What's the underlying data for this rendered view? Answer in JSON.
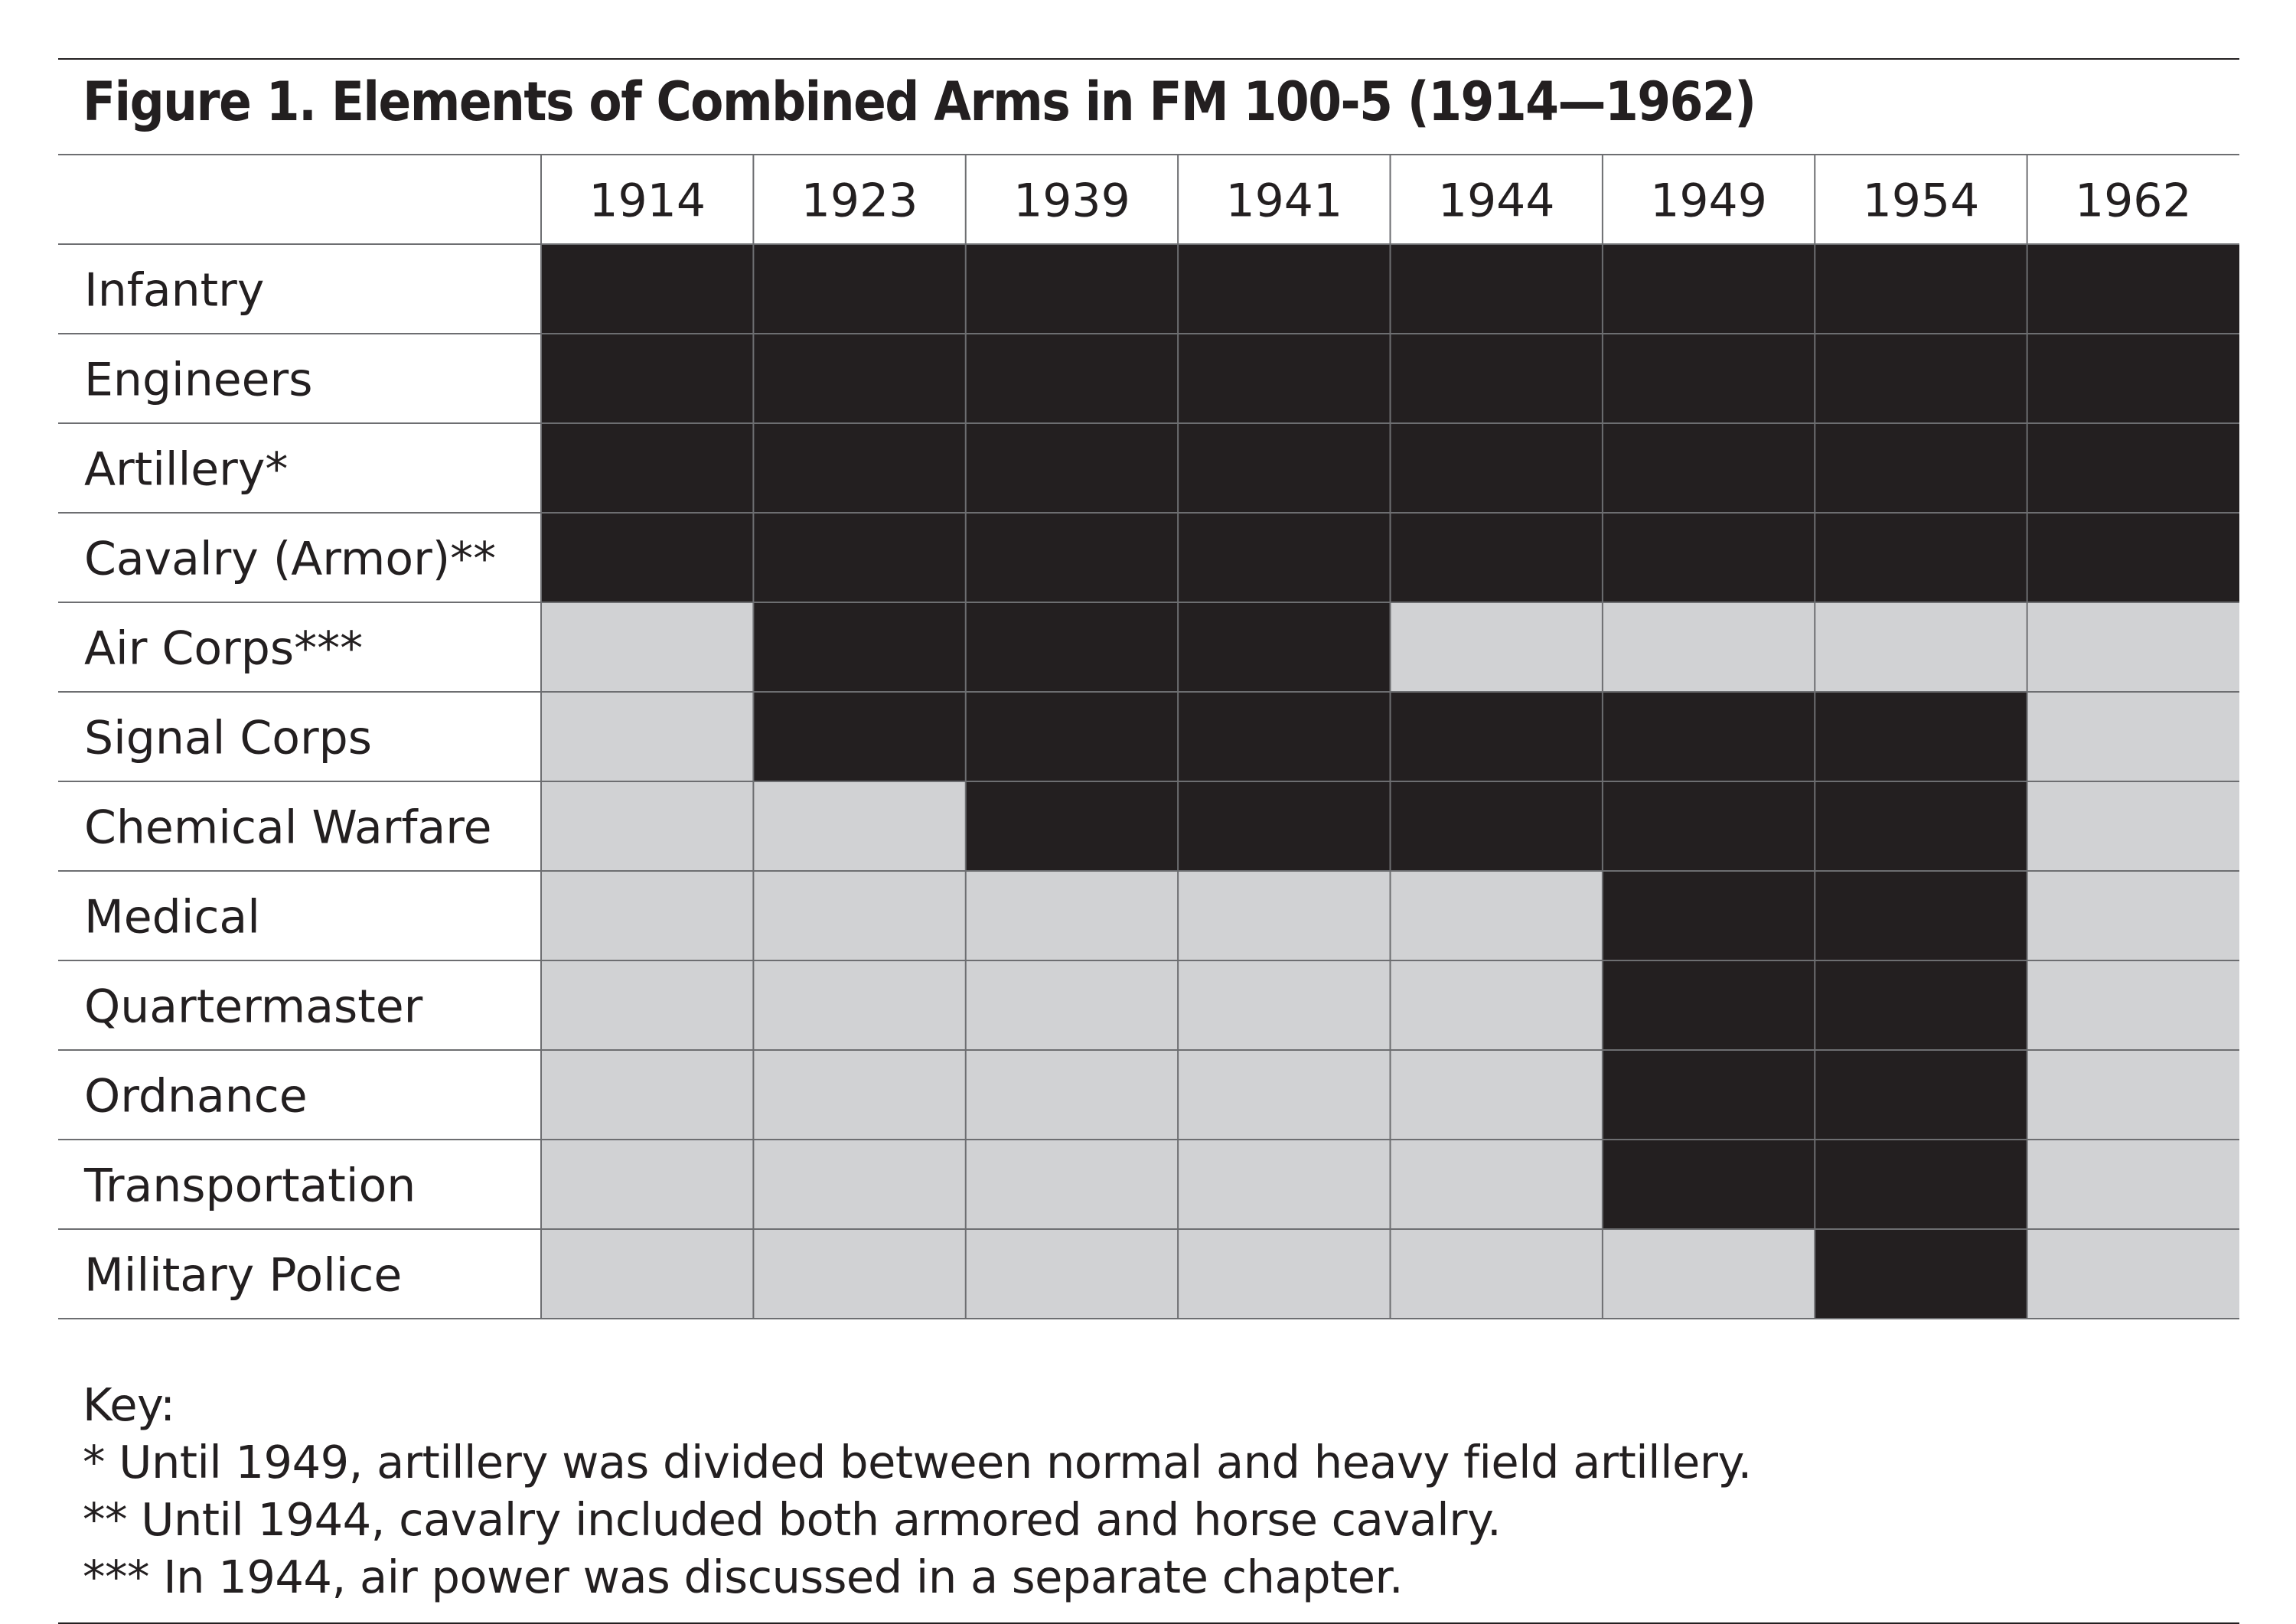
{
  "title": "Figure 1. Elements of Combined Arms in FM 100-5 (1914—1962)",
  "chart_data": {
    "type": "table",
    "columns": [
      "1914",
      "1923",
      "1939",
      "1941",
      "1944",
      "1949",
      "1954",
      "1962"
    ],
    "rows": [
      {
        "label": "Infantry",
        "present": [
          1,
          1,
          1,
          1,
          1,
          1,
          1,
          1
        ]
      },
      {
        "label": "Engineers",
        "present": [
          1,
          1,
          1,
          1,
          1,
          1,
          1,
          1
        ]
      },
      {
        "label": "Artillery*",
        "present": [
          1,
          1,
          1,
          1,
          1,
          1,
          1,
          1
        ]
      },
      {
        "label": "Cavalry (Armor)**",
        "present": [
          1,
          1,
          1,
          1,
          1,
          1,
          1,
          1
        ]
      },
      {
        "label": "Air Corps***",
        "present": [
          0,
          1,
          1,
          1,
          0,
          0,
          0,
          0
        ]
      },
      {
        "label": "Signal Corps",
        "present": [
          0,
          1,
          1,
          1,
          1,
          1,
          1,
          0
        ]
      },
      {
        "label": "Chemical Warfare",
        "present": [
          0,
          0,
          1,
          1,
          1,
          1,
          1,
          0
        ]
      },
      {
        "label": "Medical",
        "present": [
          0,
          0,
          0,
          0,
          0,
          1,
          1,
          0
        ]
      },
      {
        "label": "Quartermaster",
        "present": [
          0,
          0,
          0,
          0,
          0,
          1,
          1,
          0
        ]
      },
      {
        "label": "Ordnance",
        "present": [
          0,
          0,
          0,
          0,
          0,
          1,
          1,
          0
        ]
      },
      {
        "label": "Transportation",
        "present": [
          0,
          0,
          0,
          0,
          0,
          1,
          1,
          0
        ]
      },
      {
        "label": "Military Police",
        "present": [
          0,
          0,
          0,
          0,
          0,
          0,
          1,
          0
        ]
      }
    ],
    "colors": {
      "present": "#231f20",
      "absent": "#d1d2d4",
      "grid": "#6d6e71",
      "text": "#231f20"
    }
  },
  "key": {
    "heading": "Key:",
    "notes": [
      "* Until 1949, artillery was divided between normal and heavy field artillery.",
      "** Until 1944, cavalry included both armored and horse cavalry.",
      "*** In 1944, air power was discussed in a separate chapter."
    ]
  }
}
